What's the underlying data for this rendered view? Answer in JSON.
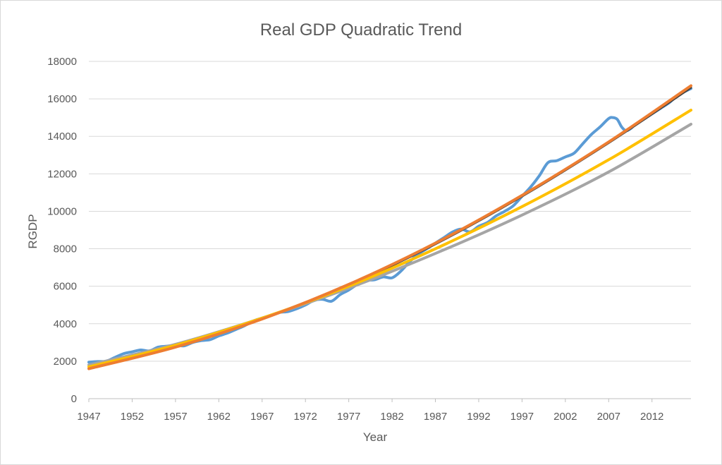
{
  "chart_data": {
    "type": "line",
    "title": "Real GDP Quadratic Trend",
    "xlabel": "Year",
    "ylabel": "RGDP",
    "xlim": [
      1947,
      2016.5
    ],
    "ylim": [
      0,
      18000
    ],
    "yticks": [
      0,
      2000,
      4000,
      6000,
      8000,
      10000,
      12000,
      14000,
      16000,
      18000
    ],
    "xticks": [
      1947,
      1952,
      1957,
      1962,
      1967,
      1972,
      1977,
      1982,
      1987,
      1992,
      1997,
      2002,
      2007,
      2012
    ],
    "grid": true,
    "legend": "none",
    "series": [
      {
        "color": "#5b9bd5",
        "width": 4,
        "x": [
          1947,
          1948,
          1949,
          1950,
          1951,
          1952,
          1953,
          1954,
          1955,
          1956,
          1957,
          1958,
          1959,
          1960,
          1961,
          1962,
          1963,
          1964,
          1965,
          1966,
          1967,
          1968,
          1969,
          1970,
          1971,
          1972,
          1973,
          1974,
          1975,
          1976,
          1977,
          1978,
          1979,
          1980,
          1981,
          1982,
          1983,
          1984,
          1985,
          1986,
          1987,
          1988,
          1989,
          1990,
          1991,
          1992,
          1993,
          1994,
          1995,
          1996,
          1997,
          1998,
          1999,
          2000,
          2001,
          2002,
          2003,
          2004,
          2005,
          2006,
          2007,
          2007.5,
          2008,
          2008.5,
          2009,
          2009.5,
          2010,
          2011,
          2012,
          2013,
          2014,
          2015,
          2016.5
        ],
        "y": [
          1950,
          1980,
          2000,
          2200,
          2400,
          2500,
          2600,
          2550,
          2750,
          2800,
          2850,
          2820,
          3000,
          3100,
          3150,
          3350,
          3500,
          3700,
          3900,
          4150,
          4300,
          4450,
          4600,
          4650,
          4800,
          5000,
          5250,
          5300,
          5200,
          5550,
          5800,
          6100,
          6300,
          6350,
          6500,
          6450,
          6800,
          7300,
          7700,
          8000,
          8300,
          8600,
          8900,
          9050,
          8900,
          9200,
          9400,
          9750,
          10000,
          10300,
          10800,
          11300,
          11900,
          12600,
          12700,
          12900,
          13100,
          13600,
          14100,
          14500,
          14950,
          15000,
          14900,
          14500,
          14300,
          14400,
          14600,
          14900,
          15200,
          15500,
          15800,
          16200,
          16550
        ]
      },
      {
        "color": "#404040",
        "width": 3,
        "x": [
          1947,
          1957,
          1967,
          1977,
          1987,
          1997,
          2007,
          2016.5
        ],
        "y": [
          1600,
          2750,
          4250,
          6050,
          8250,
          10800,
          13650,
          16600
        ]
      },
      {
        "color": "#a5a5a5",
        "width": 4,
        "x": [
          1947,
          1957,
          1967,
          1977,
          1987,
          1997,
          2007,
          2016.5
        ],
        "y": [
          1800,
          2900,
          4300,
          5900,
          7750,
          9800,
          12100,
          14650
        ]
      },
      {
        "color": "#ffc000",
        "width": 4,
        "x": [
          1947,
          1957,
          1967,
          1977,
          1987,
          1997,
          2007,
          2016.5
        ],
        "y": [
          1700,
          2850,
          4300,
          6000,
          8000,
          10250,
          12750,
          15400
        ]
      },
      {
        "color": "#ed7d31",
        "width": 4,
        "x": [
          1947,
          1957,
          1967,
          1977,
          1987,
          1997,
          2007,
          2016.5
        ],
        "y": [
          1600,
          2750,
          4250,
          6100,
          8300,
          10850,
          13700,
          16700
        ]
      }
    ]
  }
}
